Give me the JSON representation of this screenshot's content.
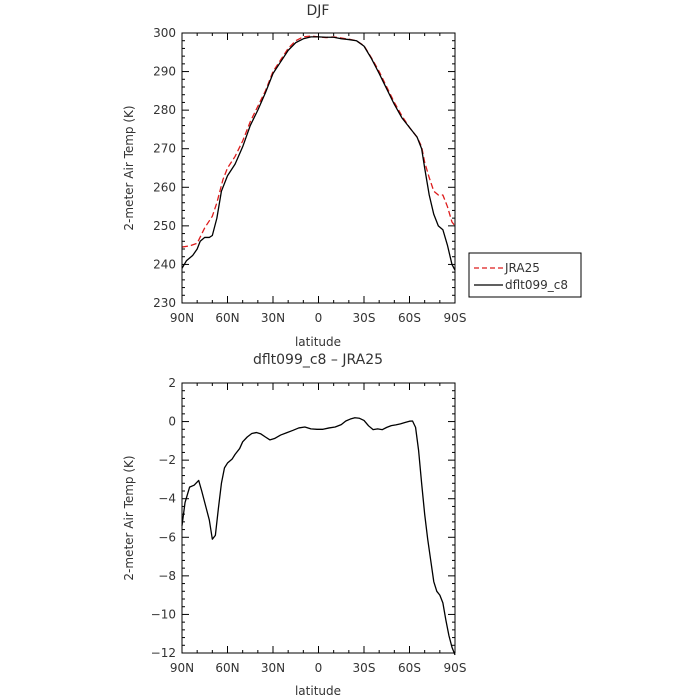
{
  "chart_data": [
    {
      "type": "line",
      "title": "DJF",
      "xlabel": "latitude",
      "ylabel": "2-meter Air Temp (K)",
      "xlim": [
        90,
        -90
      ],
      "ylim": [
        230,
        300
      ],
      "x_tick_labels": [
        "90N",
        "60N",
        "30N",
        "0",
        "30S",
        "60S",
        "90S"
      ],
      "y_tick_labels": [
        "230",
        "240",
        "250",
        "260",
        "270",
        "280",
        "290",
        "300"
      ],
      "legend_position": "outside-right",
      "series": [
        {
          "name": "JRA25",
          "color": "#dd1c1c",
          "style": "dashed",
          "points": [
            [
              90,
              244.5
            ],
            [
              85,
              244.8
            ],
            [
              80,
              245.5
            ],
            [
              75,
              249.5
            ],
            [
              70,
              252.5
            ],
            [
              67,
              256
            ],
            [
              63,
              262
            ],
            [
              60,
              265
            ],
            [
              55,
              268
            ],
            [
              50,
              272
            ],
            [
              45,
              277
            ],
            [
              40,
              281
            ],
            [
              35,
              285
            ],
            [
              30,
              290
            ],
            [
              25,
              293
            ],
            [
              20,
              296
            ],
            [
              15,
              298
            ],
            [
              10,
              299
            ],
            [
              5,
              299.2
            ],
            [
              0,
              299
            ],
            [
              -5,
              298.8
            ],
            [
              -10,
              299
            ],
            [
              -15,
              298.7
            ],
            [
              -20,
              298.4
            ],
            [
              -25,
              298
            ],
            [
              -30,
              296.7
            ],
            [
              -35,
              293.5
            ],
            [
              -40,
              290
            ],
            [
              -45,
              286
            ],
            [
              -50,
              282
            ],
            [
              -55,
              278.5
            ],
            [
              -60,
              275.5
            ],
            [
              -65,
              273
            ],
            [
              -68,
              270.5
            ],
            [
              -70,
              266.5
            ],
            [
              -73,
              262.5
            ],
            [
              -76,
              259
            ],
            [
              -79,
              258
            ],
            [
              -82,
              258
            ],
            [
              -85,
              255
            ],
            [
              -88,
              251
            ],
            [
              -90,
              250
            ]
          ]
        },
        {
          "name": "dflt099_c8",
          "color": "#000000",
          "style": "solid",
          "points": [
            [
              90,
              239
            ],
            [
              87,
              241
            ],
            [
              83,
              242.3
            ],
            [
              80,
              244
            ],
            [
              78,
              246
            ],
            [
              75,
              247
            ],
            [
              72,
              247
            ],
            [
              70,
              247.5
            ],
            [
              67,
              252
            ],
            [
              64,
              259
            ],
            [
              60,
              263
            ],
            [
              55,
              266
            ],
            [
              50,
              270.5
            ],
            [
              45,
              276
            ],
            [
              40,
              280
            ],
            [
              35,
              284.5
            ],
            [
              30,
              289.5
            ],
            [
              25,
              292.5
            ],
            [
              20,
              295.5
            ],
            [
              15,
              297.5
            ],
            [
              10,
              298.5
            ],
            [
              5,
              299
            ],
            [
              0,
              299
            ],
            [
              -5,
              298.9
            ],
            [
              -10,
              298.9
            ],
            [
              -15,
              298.5
            ],
            [
              -20,
              298.3
            ],
            [
              -25,
              298
            ],
            [
              -30,
              296.6
            ],
            [
              -35,
              293.3
            ],
            [
              -40,
              289.5
            ],
            [
              -45,
              285.5
            ],
            [
              -50,
              281.5
            ],
            [
              -55,
              278
            ],
            [
              -60,
              275.5
            ],
            [
              -65,
              273
            ],
            [
              -68,
              270
            ],
            [
              -70,
              265
            ],
            [
              -73,
              258
            ],
            [
              -76,
              253
            ],
            [
              -79,
              250
            ],
            [
              -82,
              249
            ],
            [
              -85,
              245
            ],
            [
              -88,
              240
            ],
            [
              -90,
              238.5
            ]
          ]
        }
      ]
    },
    {
      "type": "line",
      "title": "dflt099_c8 – JRA25",
      "xlabel": "latitude",
      "ylabel": "2-meter Air Temp (K)",
      "xlim": [
        90,
        -90
      ],
      "ylim": [
        -12,
        2
      ],
      "x_tick_labels": [
        "90N",
        "60N",
        "30N",
        "0",
        "30S",
        "60S",
        "90S"
      ],
      "y_tick_labels": [
        "−12",
        "−10",
        "−8",
        "−6",
        "−4",
        "−2",
        "0",
        "2"
      ],
      "series": [
        {
          "color": "#000000",
          "style": "solid",
          "points": [
            [
              90,
              -5.4
            ],
            [
              88,
              -4.2
            ],
            [
              85,
              -3.4
            ],
            [
              82,
              -3.3
            ],
            [
              79,
              -3.05
            ],
            [
              77,
              -3.6
            ],
            [
              74,
              -4.5
            ],
            [
              72,
              -5.1
            ],
            [
              70,
              -6.1
            ],
            [
              68,
              -5.9
            ],
            [
              66,
              -4.5
            ],
            [
              64,
              -3.2
            ],
            [
              62,
              -2.4
            ],
            [
              60,
              -2.15
            ],
            [
              57,
              -1.95
            ],
            [
              55,
              -1.7
            ],
            [
              52,
              -1.4
            ],
            [
              50,
              -1.05
            ],
            [
              47,
              -0.8
            ],
            [
              44,
              -0.62
            ],
            [
              41,
              -0.57
            ],
            [
              38,
              -0.64
            ],
            [
              35,
              -0.8
            ],
            [
              32,
              -0.95
            ],
            [
              29,
              -0.88
            ],
            [
              25,
              -0.7
            ],
            [
              21,
              -0.58
            ],
            [
              17,
              -0.46
            ],
            [
              13,
              -0.33
            ],
            [
              9,
              -0.28
            ],
            [
              5,
              -0.38
            ],
            [
              1,
              -0.4
            ],
            [
              -3,
              -0.4
            ],
            [
              -7,
              -0.33
            ],
            [
              -11,
              -0.28
            ],
            [
              -15,
              -0.16
            ],
            [
              -18,
              0.03
            ],
            [
              -21,
              0.13
            ],
            [
              -24,
              0.2
            ],
            [
              -27,
              0.17
            ],
            [
              -30,
              0.06
            ],
            [
              -33,
              -0.22
            ],
            [
              -36,
              -0.42
            ],
            [
              -39,
              -0.38
            ],
            [
              -42,
              -0.42
            ],
            [
              -45,
              -0.3
            ],
            [
              -48,
              -0.21
            ],
            [
              -51,
              -0.17
            ],
            [
              -54,
              -0.12
            ],
            [
              -57,
              -0.05
            ],
            [
              -60,
              0.02
            ],
            [
              -62,
              0.03
            ],
            [
              -64,
              -0.3
            ],
            [
              -66,
              -1.5
            ],
            [
              -68,
              -3.2
            ],
            [
              -70,
              -4.8
            ],
            [
              -72,
              -6.1
            ],
            [
              -74,
              -7.2
            ],
            [
              -76,
              -8.3
            ],
            [
              -78,
              -8.8
            ],
            [
              -80,
              -9
            ],
            [
              -82,
              -9.4
            ],
            [
              -84,
              -10.3
            ],
            [
              -86,
              -11.1
            ],
            [
              -88,
              -11.7
            ],
            [
              -90,
              -12.1
            ]
          ]
        }
      ]
    }
  ]
}
